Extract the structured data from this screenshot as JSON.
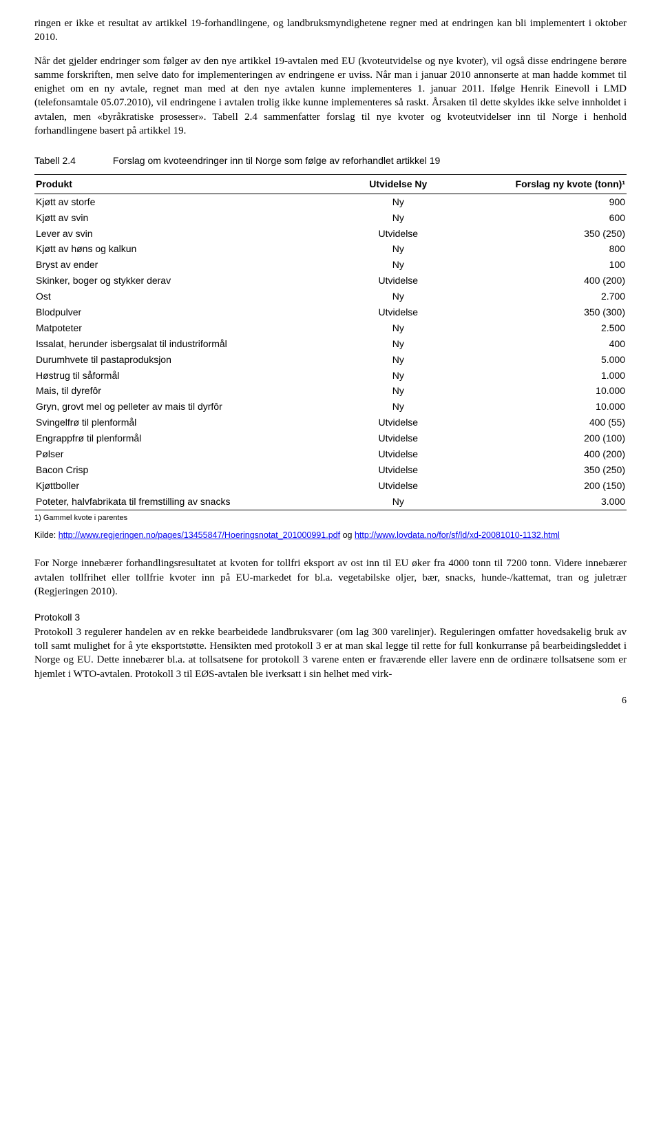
{
  "para1": "ringen er ikke et resultat av artikkel 19-forhandlingene, og landbruksmyndighetene regner med at endringen kan bli implementert i oktober 2010.",
  "para2": "Når det gjelder endringer som følger av den nye artikkel 19-avtalen med EU (kvoteutvidelse og nye kvoter), vil også disse endringene berøre samme forskriften, men selve dato for implementeringen av endringene er uviss. Når man i januar 2010 annonserte at man hadde kommet til enighet om en ny avtale, regnet man med at den nye avtalen kunne implementeres 1. januar 2011. Ifølge Henrik Einevoll i LMD (telefonsamtale 05.07.2010), vil endringene i avtalen trolig ikke kunne implementeres så raskt. Årsaken til dette skyldes ikke selve innholdet i avtalen, men «byråkratiske prosesser». Tabell 2.4 sammenfatter forslag til nye kvoter og kvoteutvidelser inn til Norge i henhold forhandlingene basert på artikkel 19.",
  "tableCaption": {
    "label": "Tabell 2.4",
    "text": "Forslag om kvoteendringer inn til Norge som følge av reforhandlet artikkel 19"
  },
  "table": {
    "headers": [
      "Produkt",
      "Utvidelse Ny",
      "Forslag ny kvote (tonn)¹"
    ],
    "rows": [
      [
        "Kjøtt av storfe",
        "Ny",
        "900"
      ],
      [
        "Kjøtt av svin",
        "Ny",
        "600"
      ],
      [
        "Lever av svin",
        "Utvidelse",
        "350 (250)"
      ],
      [
        "Kjøtt av høns og kalkun",
        "Ny",
        "800"
      ],
      [
        "Bryst av ender",
        "Ny",
        "100"
      ],
      [
        "Skinker, boger og stykker derav",
        "Utvidelse",
        "400 (200)"
      ],
      [
        "Ost",
        "Ny",
        "2.700"
      ],
      [
        "Blodpulver",
        "Utvidelse",
        "350 (300)"
      ],
      [
        "Matpoteter",
        "Ny",
        "2.500"
      ],
      [
        "Issalat, herunder isbergsalat til industriformål",
        "Ny",
        "400"
      ],
      [
        "Durumhvete til pastaproduksjon",
        "Ny",
        "5.000"
      ],
      [
        "Høstrug til såformål",
        "Ny",
        "1.000"
      ],
      [
        "Mais, til dyrefôr",
        "Ny",
        "10.000"
      ],
      [
        "Gryn, grovt mel og pelleter av mais til dyrfôr",
        "Ny",
        "10.000"
      ],
      [
        "Svingelfrø til plenformål",
        "Utvidelse",
        "400 (55)"
      ],
      [
        "Engrappfrø til plenformål",
        "Utvidelse",
        "200 (100)"
      ],
      [
        "Pølser",
        "Utvidelse",
        "400 (200)"
      ],
      [
        "Bacon Crisp",
        "Utvidelse",
        "350 (250)"
      ],
      [
        "Kjøttboller",
        "Utvidelse",
        "200 (150)"
      ],
      [
        "Poteter, halvfabrikata til fremstilling av snacks",
        "Ny",
        "3.000"
      ]
    ]
  },
  "footnote": "1)  Gammel kvote i parentes",
  "source": {
    "prefix": "Kilde: ",
    "link1": "http://www.regjeringen.no/pages/13455847/Hoeringsnotat_201000991.pdf",
    "midtext": " og ",
    "link2": "http://www.lovdata.no/for/sf/ld/xd-20081010-1132.html"
  },
  "para3": "For Norge innebærer forhandlingsresultatet at kvoten for tollfri eksport av ost inn til EU øker fra 4000 tonn til 7200 tonn. Videre innebærer avtalen tollfrihet eller tollfrie kvoter inn på EU-markedet for bl.a. vegetabilske oljer, bær, snacks, hunde-/kattemat, tran og juletrær (Regjeringen 2010).",
  "sectionHead": "Protokoll 3",
  "para4": "Protokoll 3 regulerer handelen av en rekke bearbeidede landbruksvarer (om lag 300 varelinjer). Reguleringen omfatter hovedsakelig bruk av toll samt mulighet for å yte eksportstøtte. Hensikten med protokoll 3 er at man skal legge til rette for full konkurranse på bearbeidingsleddet i Norge og EU. Dette innebærer bl.a. at tollsatsene for protokoll 3 varene enten er fraværende eller lavere enn de ordinære tollsatsene som er hjemlet i WTO-avtalen. Protokoll 3 til EØS-avtalen ble iverksatt i sin helhet med virk-",
  "pageNum": "6"
}
